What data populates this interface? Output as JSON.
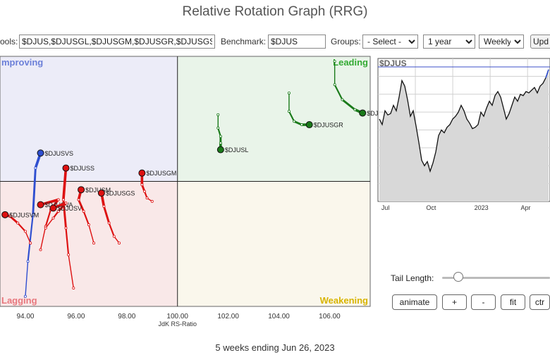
{
  "title": "Relative Rotation Graph (RRG)",
  "toolbar": {
    "symbols_label": "ools:",
    "symbols_value": "$DJUS,$DJUSGL,$DJUSGM,$DJUSGR,$DJUSGS",
    "benchmark_label": "Benchmark:",
    "benchmark_value": "$DJUS",
    "groups_label": "Groups:",
    "groups_value": "- Select -",
    "period_value": "1 year",
    "frequency_value": "Weekly",
    "update_label": "Upd"
  },
  "chart_data": [
    {
      "type": "scatter",
      "title": "",
      "xlabel": "JdK RS-Ratio",
      "ylabel": "",
      "xlim": [
        93.0,
        107.6
      ],
      "ylim": [
        92.5,
        107.5
      ],
      "x_ticks": [
        "94.00",
        "96.00",
        "98.00",
        "100.00",
        "102.00",
        "104.00",
        "106.00"
      ],
      "quadrants": {
        "improving": "mproving",
        "leading": "Leading",
        "weakening": "Weakening",
        "lagging": "Lagging"
      },
      "colors": {
        "improving": "#6b7fd8",
        "leading": "#33aa33",
        "weakening": "#d8b400",
        "lagging": "#e8787e"
      },
      "series": [
        {
          "name": "$DJUSVS",
          "color": "#2f4fd0",
          "x": [
            94.0,
            94.1,
            94.3,
            94.4,
            94.6
          ],
          "y": [
            93.1,
            95.2,
            98.0,
            100.8,
            101.7
          ]
        },
        {
          "name": "$DJUSS",
          "color": "#dd1111",
          "x": [
            95.9,
            95.7,
            95.6,
            95.5,
            95.6
          ],
          "y": [
            93.6,
            95.6,
            97.2,
            98.9,
            100.8
          ]
        },
        {
          "name": "$DJUSM",
          "color": "#dd1111",
          "x": [
            96.7,
            96.5,
            96.3,
            96.1,
            96.2
          ],
          "y": [
            96.3,
            97.4,
            98.2,
            98.9,
            99.5
          ]
        },
        {
          "name": "$DJUSVA",
          "color": "#dd1111",
          "x": [
            94.6,
            94.8,
            95.0,
            95.3,
            94.6
          ],
          "y": [
            95.9,
            97.3,
            98.3,
            98.9,
            98.6
          ]
        },
        {
          "name": "$DJUSV",
          "color": "#dd1111",
          "x": [
            94.8,
            95.1,
            95.3,
            95.6,
            95.1
          ],
          "y": [
            97.2,
            97.8,
            98.2,
            98.7,
            98.4
          ]
        },
        {
          "name": "$DJUSVM",
          "color": "#dd1111",
          "x": [
            94.2,
            94.0,
            93.7,
            93.4,
            93.2
          ],
          "y": [
            96.3,
            97.0,
            97.5,
            97.9,
            98.0
          ]
        },
        {
          "name": "$DJUSGS",
          "color": "#dd1111",
          "x": [
            97.7,
            97.5,
            97.3,
            97.1,
            97.0
          ],
          "y": [
            96.3,
            96.7,
            97.5,
            98.5,
            99.3
          ]
        },
        {
          "name": "$DJUSGM",
          "color": "#dd1111",
          "x": [
            99.0,
            98.8,
            98.7,
            98.6,
            98.6
          ],
          "y": [
            98.8,
            99.0,
            99.4,
            99.8,
            100.5
          ]
        },
        {
          "name": "$DJUSL",
          "color": "#1a7a1a",
          "x": [
            101.6,
            101.6,
            101.7,
            101.7,
            101.7
          ],
          "y": [
            104.0,
            103.2,
            102.7,
            102.3,
            101.9
          ]
        },
        {
          "name": "$DJUSGR",
          "color": "#1a7a1a",
          "x": [
            104.4,
            104.4,
            104.6,
            104.9,
            105.2
          ],
          "y": [
            105.3,
            104.2,
            103.6,
            103.4,
            103.4
          ]
        },
        {
          "name": "$DJUSGL",
          "color": "#1a7a1a",
          "x": [
            106.2,
            106.2,
            106.5,
            107.0,
            107.3
          ],
          "y": [
            107.2,
            105.8,
            104.9,
            104.3,
            104.1
          ]
        }
      ]
    },
    {
      "type": "area",
      "title": "$DJUS",
      "xlabel": "",
      "ylabel": "",
      "x_ticks": [
        "Jul",
        "Oct",
        "2023",
        "Apr"
      ],
      "values": [
        60,
        56,
        66,
        63,
        64,
        70,
        66,
        76,
        88,
        84,
        74,
        62,
        66,
        55,
        43,
        30,
        26,
        29,
        22,
        28,
        36,
        48,
        52,
        50,
        54,
        56,
        60,
        62,
        65,
        70,
        66,
        60,
        57,
        53,
        54,
        56,
        65,
        62,
        68,
        73,
        70,
        77,
        80,
        76,
        68,
        60,
        64,
        70,
        76,
        73,
        78,
        77,
        80,
        79,
        81,
        83,
        79,
        84,
        86,
        90,
        96
      ],
      "ylim": [
        0,
        100
      ],
      "grid": true
    }
  ],
  "controls": {
    "tail_length_label": "Tail Length:",
    "animate_label": "animate",
    "plus_label": "+",
    "minus_label": "-",
    "fit_label": "fit",
    "ctr_label": "ctr"
  },
  "footer": "5 weeks ending Jun 26, 2023"
}
